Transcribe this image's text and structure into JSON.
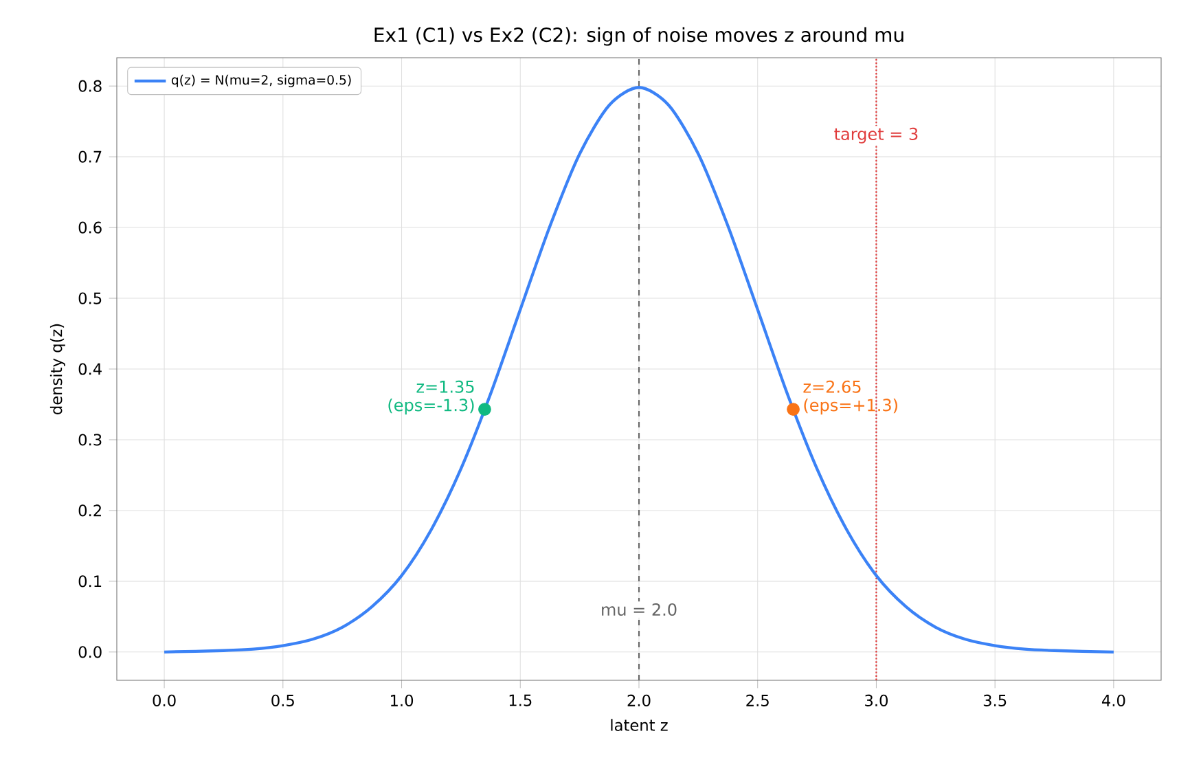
{
  "chart_data": {
    "type": "line",
    "title": "Ex1 (C1) vs Ex2 (C2): sign of noise moves z around mu",
    "xlabel": "latent z",
    "ylabel": "density q(z)",
    "xlim": [
      -0.2,
      4.2
    ],
    "ylim": [
      -0.04,
      0.84
    ],
    "xticks": [
      {
        "value": 0,
        "label": "0.0"
      },
      {
        "value": 0.5,
        "label": "0.5"
      },
      {
        "value": 1,
        "label": "1.0"
      },
      {
        "value": 1.5,
        "label": "1.5"
      },
      {
        "value": 2,
        "label": "2.0"
      },
      {
        "value": 2.5,
        "label": "2.5"
      },
      {
        "value": 3,
        "label": "3.0"
      },
      {
        "value": 3.5,
        "label": "3.5"
      },
      {
        "value": 4,
        "label": "4.0"
      }
    ],
    "yticks": [
      {
        "value": 0,
        "label": "0.0"
      },
      {
        "value": 0.1,
        "label": "0.1"
      },
      {
        "value": 0.2,
        "label": "0.2"
      },
      {
        "value": 0.3,
        "label": "0.3"
      },
      {
        "value": 0.4,
        "label": "0.4"
      },
      {
        "value": 0.5,
        "label": "0.5"
      },
      {
        "value": 0.6,
        "label": "0.6"
      },
      {
        "value": 0.7,
        "label": "0.7"
      },
      {
        "value": 0.8,
        "label": "0.8"
      }
    ],
    "grid": true,
    "legend": "top left",
    "marker": "none",
    "line_style": "solid",
    "series": [
      {
        "name": "q(z) = N(mu=2, sigma=0.5)",
        "color": "#3b82f6",
        "x": [
          0,
          0.25,
          0.375,
          0.5,
          0.625,
          0.75,
          0.875,
          1.0,
          1.125,
          1.25,
          1.375,
          1.5,
          1.625,
          1.75,
          1.875,
          2.0,
          2.125,
          2.25,
          2.375,
          2.5,
          2.625,
          2.75,
          2.875,
          3.0,
          3.125,
          3.25,
          3.375,
          3.5,
          3.625,
          3.75,
          4.0
        ],
        "values": [
          0.0,
          0.002,
          0.004,
          0.009,
          0.018,
          0.035,
          0.064,
          0.108,
          0.173,
          0.259,
          0.365,
          0.484,
          0.602,
          0.704,
          0.773,
          0.798,
          0.773,
          0.704,
          0.602,
          0.484,
          0.365,
          0.259,
          0.173,
          0.108,
          0.064,
          0.035,
          0.018,
          0.009,
          0.004,
          0.002,
          0.0
        ]
      },
      {
        "type": "scatter",
        "marker": "circle",
        "color": "#10b981",
        "x": [
          1.35
        ],
        "values": [
          0.343
        ]
      },
      {
        "type": "scatter",
        "marker": "circle",
        "color": "#f97316",
        "x": [
          2.65
        ],
        "values": [
          0.343
        ]
      }
    ],
    "ref_lines": [
      {
        "axis": "x",
        "value": 2,
        "color": "#666666",
        "line_style": "dashed"
      },
      {
        "axis": "x",
        "value": 3,
        "color": "#e03c3c",
        "line_style": "dotted"
      }
    ],
    "annotations": [
      {
        "text": "z=1.35 (eps=-1.3)",
        "x": 1.35,
        "y": 0.343
      },
      {
        "text": "z=2.65 (eps=+1.3)",
        "x": 2.65,
        "y": 0.343
      },
      {
        "text": "mu = 2.0",
        "x": 2.0,
        "y": 0.06
      },
      {
        "text": "target = 3",
        "x": 3.0,
        "y": 0.73
      }
    ]
  }
}
